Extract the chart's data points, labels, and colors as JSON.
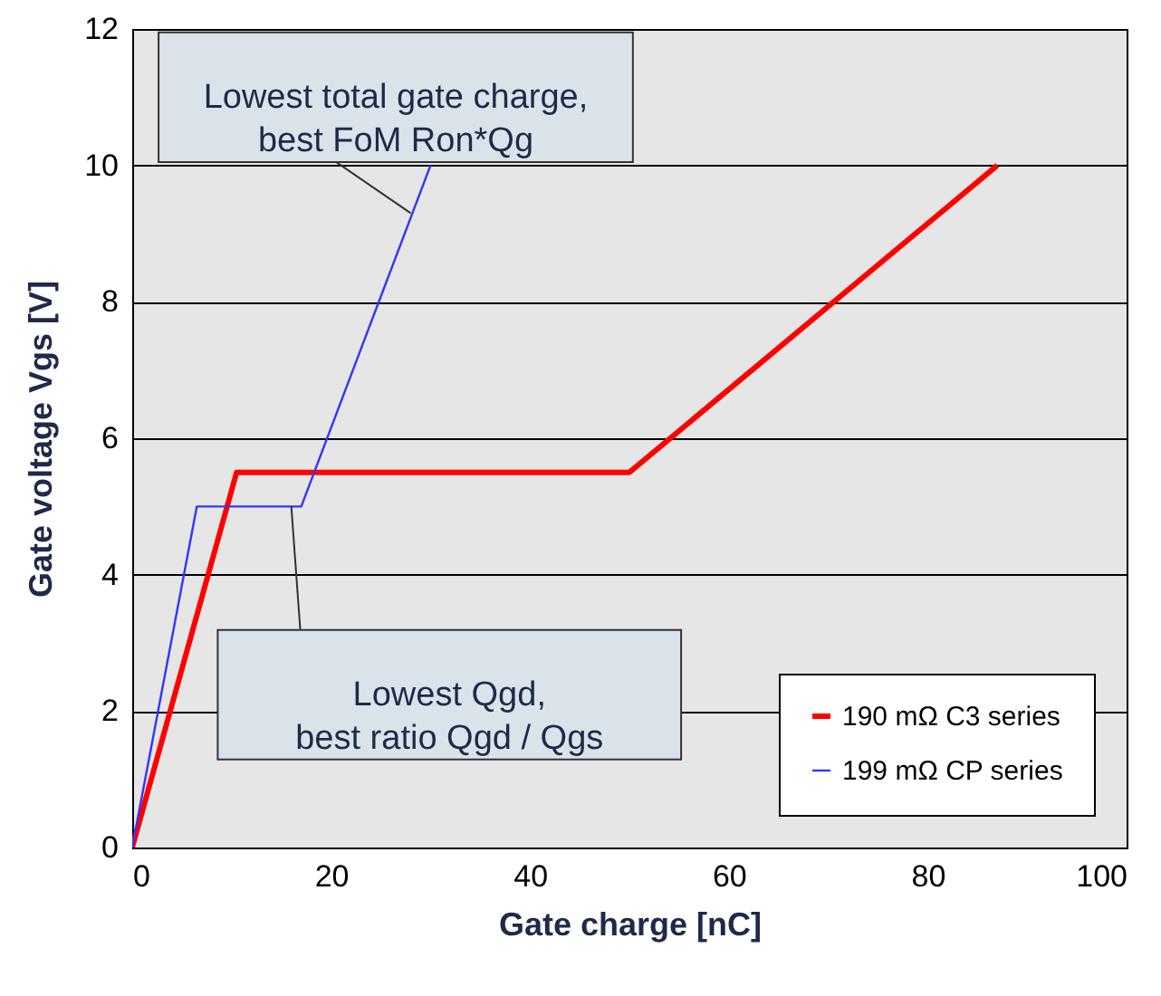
{
  "chart_data": {
    "type": "line",
    "xlabel": "Gate charge [nC]",
    "ylabel": "Gate voltage Vgs [V]",
    "xlim": [
      0,
      100
    ],
    "xticks": [
      0,
      20,
      40,
      60,
      80,
      100
    ],
    "ylim": [
      0,
      12
    ],
    "yticks": [
      0,
      2,
      4,
      6,
      8,
      10,
      12
    ],
    "grid": "y",
    "legend": "bottom right",
    "series": [
      {
        "name": "190 mΩ C3 series",
        "color": "#ff0000",
        "x": [
          0,
          10.5,
          50,
          87
        ],
        "values": [
          0,
          5.5,
          5.5,
          10
        ]
      },
      {
        "name": "199 mΩ CP series",
        "color": "#3333ff",
        "x": [
          0,
          6.5,
          17,
          30
        ],
        "values": [
          0,
          5,
          5,
          10
        ]
      }
    ],
    "annotations": [
      {
        "text": "Lowest total gate charge,\nbest FoM Ron*Qg",
        "x": 28,
        "y": 9.3
      },
      "Lowest Qgd,\nbest ratio Qgd / Qgs"
    ]
  }
}
